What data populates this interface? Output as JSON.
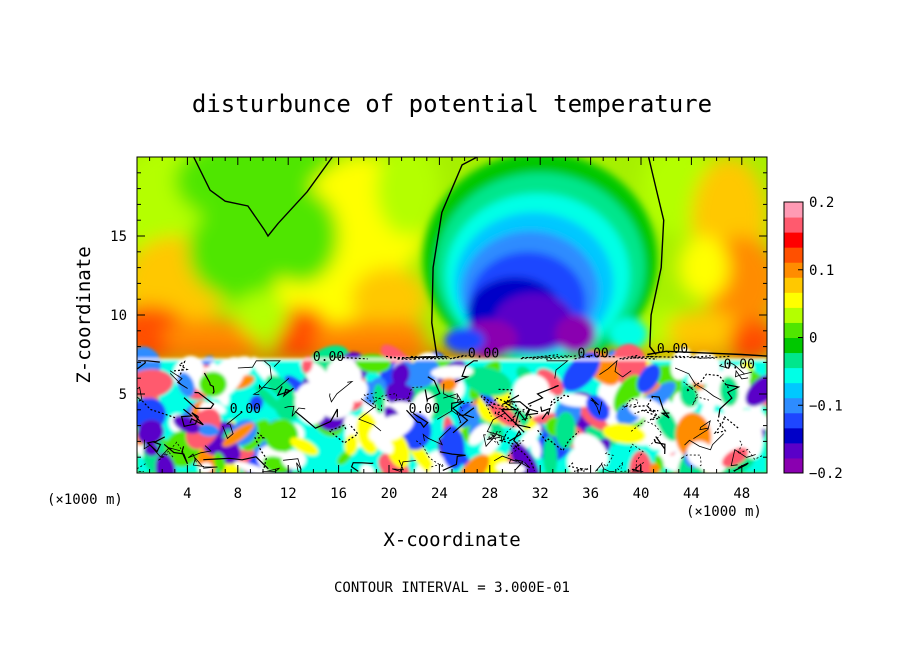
{
  "chart_data": {
    "type": "heatmap",
    "title": "disturbunce of potential temperature",
    "xlabel": "X-coordinate",
    "ylabel": "Z-coordinate",
    "x_unit_left": "(×1000 m)",
    "x_unit_right": "(×1000 m)",
    "footer": "CONTOUR INTERVAL = 3.000E-01",
    "xlim": [
      0,
      50
    ],
    "ylim": [
      0,
      20
    ],
    "x_ticks": [
      4,
      8,
      12,
      16,
      20,
      24,
      28,
      32,
      36,
      40,
      44,
      48
    ],
    "y_ticks": [
      5,
      10,
      15
    ],
    "colorbar": {
      "range": [
        -0.2,
        0.2
      ],
      "ticks": [
        {
          "value": 0.2,
          "label": "0.2"
        },
        {
          "value": 0.1,
          "label": "0.1"
        },
        {
          "value": 0.0,
          "label": "0"
        },
        {
          "value": -0.1,
          "label": "−0.1"
        },
        {
          "value": -0.2,
          "label": "−0.2"
        }
      ],
      "colors": [
        "#8a00b0",
        "#5a00c8",
        "#0000c8",
        "#1e46ff",
        "#2d8cff",
        "#00c8ff",
        "#00ffe6",
        "#00e68c",
        "#00c800",
        "#50e600",
        "#b4ff00",
        "#ffff00",
        "#ffc800",
        "#ff8c00",
        "#ff5000",
        "#ff0000",
        "#ff5a6e",
        "#ff9ab4"
      ]
    },
    "contour_labels": [
      {
        "x": 15.2,
        "z": 7.1,
        "text": "0.00"
      },
      {
        "x": 27.5,
        "z": 7.3,
        "text": "0.00"
      },
      {
        "x": 36.2,
        "z": 7.3,
        "text": "0.00"
      },
      {
        "x": 42.5,
        "z": 7.6,
        "text": "0.00"
      },
      {
        "x": 47.8,
        "z": 6.6,
        "text": "0.00"
      },
      {
        "x": 22.8,
        "z": 3.8,
        "text": "0.00"
      },
      {
        "x": 8.6,
        "z": 3.8,
        "text": "0.00"
      }
    ],
    "features": [
      {
        "region": "upper left and center (z > 7.5)",
        "value_range": [
          0.0,
          0.08
        ],
        "description": "green/yellow"
      },
      {
        "region": "x 24-40, z 8-20",
        "value_range": [
          -0.2,
          -0.05
        ],
        "description": "cold dome, blue/purple"
      },
      {
        "region": "z ≈ 7-8, x 0-20",
        "value_range": [
          0.08,
          0.15
        ],
        "description": "warm band, orange/red"
      },
      {
        "region": "x 44-50, z 10-15",
        "value_range": [
          0.06,
          0.1
        ],
        "description": "orange"
      },
      {
        "region": "z < 7.2",
        "value_range": [
          -0.3,
          0.3
        ],
        "description": "turbulent mixed layer, exceeds colour range (white)"
      }
    ]
  }
}
